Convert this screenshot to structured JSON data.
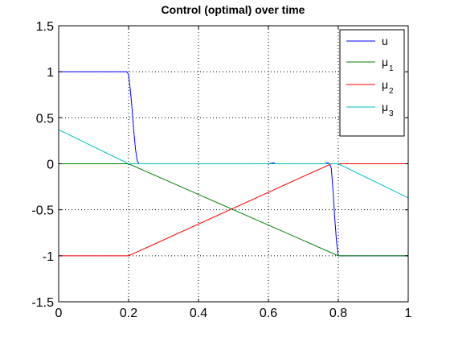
{
  "chart_data": {
    "type": "line",
    "title": "Control (optimal) over time",
    "xlabel": "",
    "ylabel": "",
    "xlim": [
      0,
      1
    ],
    "ylim": [
      -1.5,
      1.5
    ],
    "xticks": [
      0,
      0.2,
      0.4,
      0.6,
      0.8,
      1
    ],
    "xtick_labels": [
      "0",
      "0.2",
      "0.4",
      "0.6",
      "0.8",
      "1"
    ],
    "yticks": [
      1.5,
      1,
      0.5,
      0,
      -0.5,
      -1,
      -1.5
    ],
    "ytick_labels": [
      "1.5",
      "1",
      "0.5",
      "0",
      "-0.5",
      "-1",
      "-1.5"
    ],
    "grid": true,
    "legend_position": "top-right",
    "series": [
      {
        "name": "u",
        "symbol": "u",
        "subscript": "",
        "color": "#0000ff",
        "x": [
          0,
          0.195,
          0.2,
          0.205,
          0.21,
          0.215,
          0.22,
          0.225,
          0.23,
          0.6,
          0.615,
          0.62,
          0.7,
          0.76,
          0.77,
          0.775,
          0.78,
          0.785,
          0.79,
          0.795,
          0.8,
          1
        ],
        "y": [
          1,
          1,
          0.97,
          0.8,
          0.6,
          0.35,
          0.15,
          0.03,
          0,
          0,
          0.01,
          0,
          0,
          0,
          0.01,
          0,
          -0.05,
          -0.3,
          -0.6,
          -0.85,
          -1,
          -1
        ]
      },
      {
        "name": "μ1",
        "symbol": "μ",
        "subscript": "1",
        "color": "#008000",
        "x": [
          0,
          0.2,
          0.8,
          1
        ],
        "y": [
          0,
          0,
          -1,
          -1
        ]
      },
      {
        "name": "μ2",
        "symbol": "μ",
        "subscript": "2",
        "color": "#ff0000",
        "x": [
          0,
          0.2,
          0.78,
          1
        ],
        "y": [
          -1,
          -1,
          0,
          0
        ]
      },
      {
        "name": "μ3",
        "symbol": "μ",
        "subscript": "3",
        "color": "#00bfbf",
        "x": [
          0,
          0.2,
          0.8,
          1
        ],
        "y": [
          0.37,
          0,
          0,
          -0.37
        ]
      }
    ]
  }
}
